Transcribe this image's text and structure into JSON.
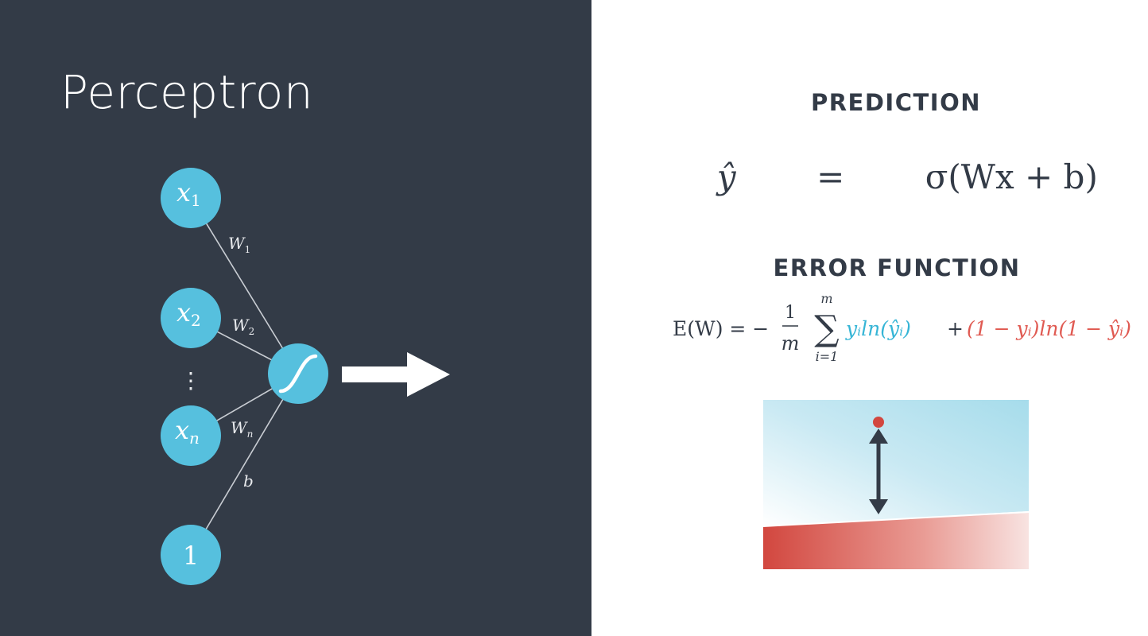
{
  "slide": {
    "title": "Perceptron"
  },
  "diagram": {
    "nodes": {
      "x1": {
        "base": "x",
        "sub": "1"
      },
      "x2": {
        "base": "x",
        "sub": "2"
      },
      "xn": {
        "base": "x",
        "sub": "n"
      },
      "bias": {
        "label": "1"
      },
      "ellipsis": "⋮"
    },
    "weights": {
      "w1": {
        "base": "W",
        "sub": "1"
      },
      "w2": {
        "base": "W",
        "sub": "2"
      },
      "wn": {
        "base": "W",
        "sub": "n"
      },
      "b": "b"
    },
    "activation_icon": "sigmoid-icon",
    "output_icon": "right-arrow-icon"
  },
  "prediction": {
    "heading": "PREDICTION",
    "formula": {
      "lhs": "ŷ",
      "equals": "=",
      "rhs": "σ(Wx + b)"
    }
  },
  "error_function": {
    "heading": "ERROR FUNCTION",
    "formula": {
      "lhs": "E(W) = −",
      "frac_num": "1",
      "frac_den": "m",
      "sum_symbol": "∑",
      "sum_upper": "m",
      "sum_lower": "i=1",
      "term_positive": "yᵢln(ŷᵢ)",
      "plus": "+",
      "term_negative": "(1 − yᵢ)ln(1 − ŷᵢ)"
    }
  },
  "colors": {
    "dark_background": "#333b47",
    "node": "#56c0de",
    "positive_term": "#36b5d6",
    "negative_term": "#e05a52",
    "error_point": "#d2473f"
  },
  "illustration": {
    "icons": [
      "up-down-arrow-icon",
      "point-icon"
    ]
  }
}
